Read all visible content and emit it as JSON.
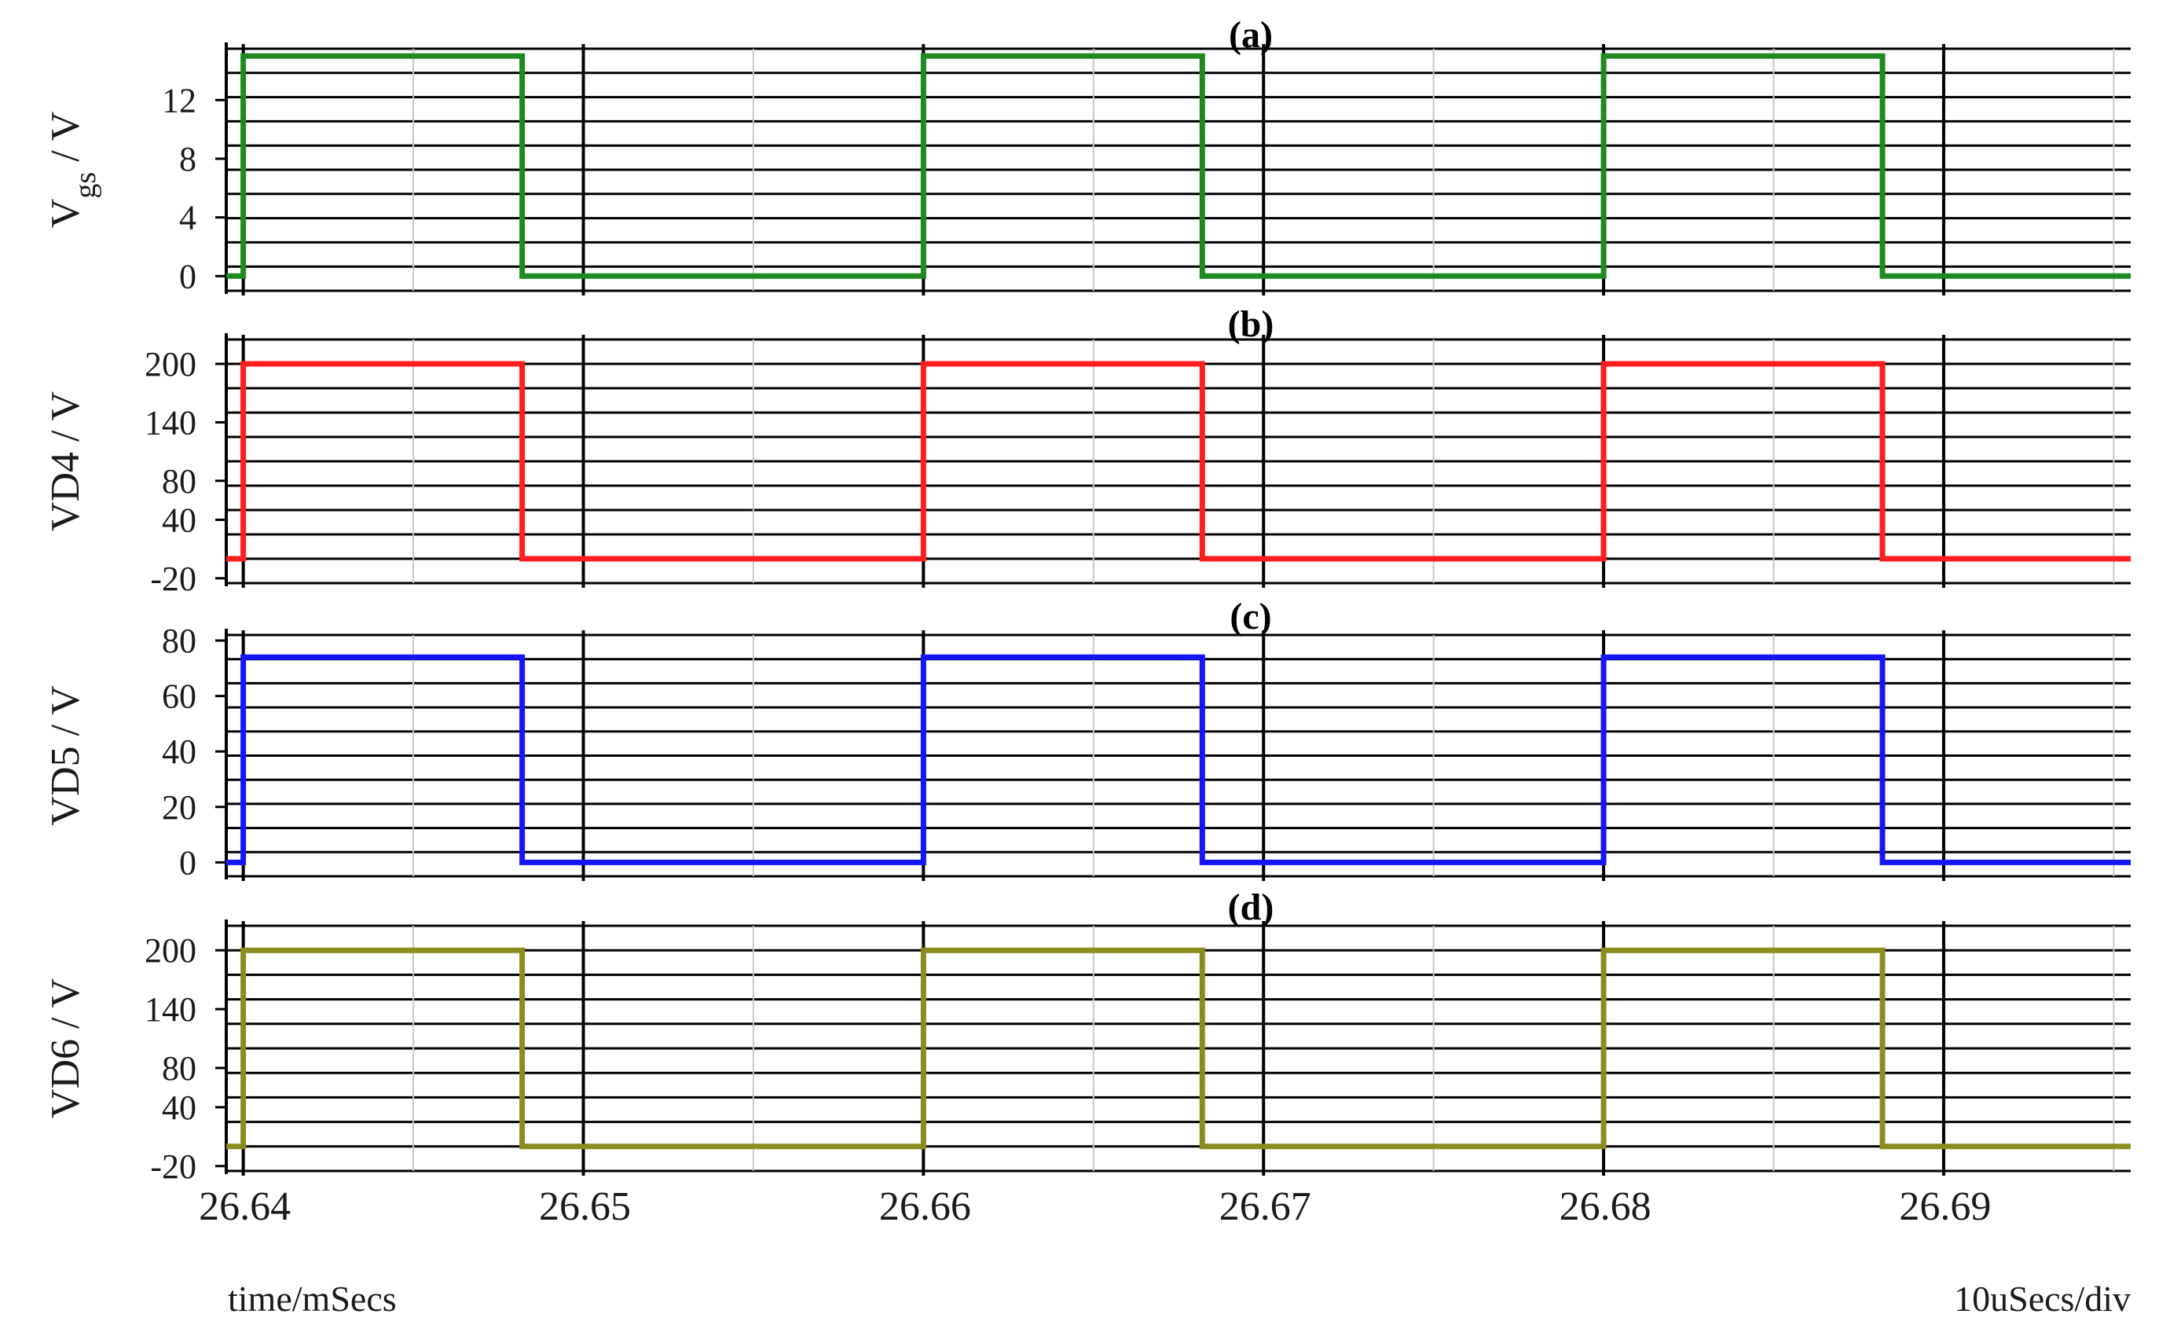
{
  "chart_data": [
    {
      "type": "line",
      "title": "(a)",
      "ylabel": "Vgs / V",
      "ylabel_main": "V",
      "ylabel_sub": "gs",
      "ylabel_rest": " / V",
      "ylim": [
        -1,
        15.5
      ],
      "yticks": [
        0,
        4,
        8,
        12
      ],
      "yticklabels": [
        "0",
        "4",
        "8",
        "12"
      ],
      "high": 15,
      "low": 0,
      "color": "#1f8a1f",
      "grid": true
    },
    {
      "type": "line",
      "title": "(b)",
      "ylabel": "VD4 / V",
      "ylim": [
        -25,
        225
      ],
      "yticks": [
        -20,
        40,
        80,
        140,
        200
      ],
      "yticklabels": [
        "-20",
        "40",
        "80",
        "140",
        "200"
      ],
      "high": 200,
      "low": 0,
      "color": "#ff1e1e",
      "grid": true
    },
    {
      "type": "line",
      "title": "(c)",
      "ylabel": "VD5 / V",
      "ylim": [
        -5,
        82
      ],
      "yticks": [
        0,
        20,
        40,
        60,
        80
      ],
      "yticklabels": [
        "0",
        "20",
        "40",
        "60",
        "80"
      ],
      "high": 74,
      "low": 0,
      "color": "#1414ff",
      "grid": true
    },
    {
      "type": "line",
      "title": "(d)",
      "ylabel": "VD6 / V",
      "ylim": [
        -25,
        225
      ],
      "yticks": [
        -20,
        40,
        80,
        140,
        200
      ],
      "yticklabels": [
        "-20",
        "40",
        "80",
        "140",
        "200"
      ],
      "high": 200,
      "low": 0,
      "color": "#8c8c1e",
      "grid": true
    }
  ],
  "x_axis": {
    "xlim": [
      26.6395,
      26.6955
    ],
    "xticks": [
      26.64,
      26.65,
      26.66,
      26.67,
      26.68,
      26.69
    ],
    "xticklabels": [
      "26.64",
      "26.65",
      "26.66",
      "26.67",
      "26.68",
      "26.69"
    ],
    "pulses_on": [
      26.64,
      26.66,
      26.68
    ],
    "pulses_off": [
      26.6482,
      26.6682,
      26.6882
    ]
  },
  "footer": {
    "xlabel": "time/mSecs",
    "scale": "10uSecs/div"
  }
}
